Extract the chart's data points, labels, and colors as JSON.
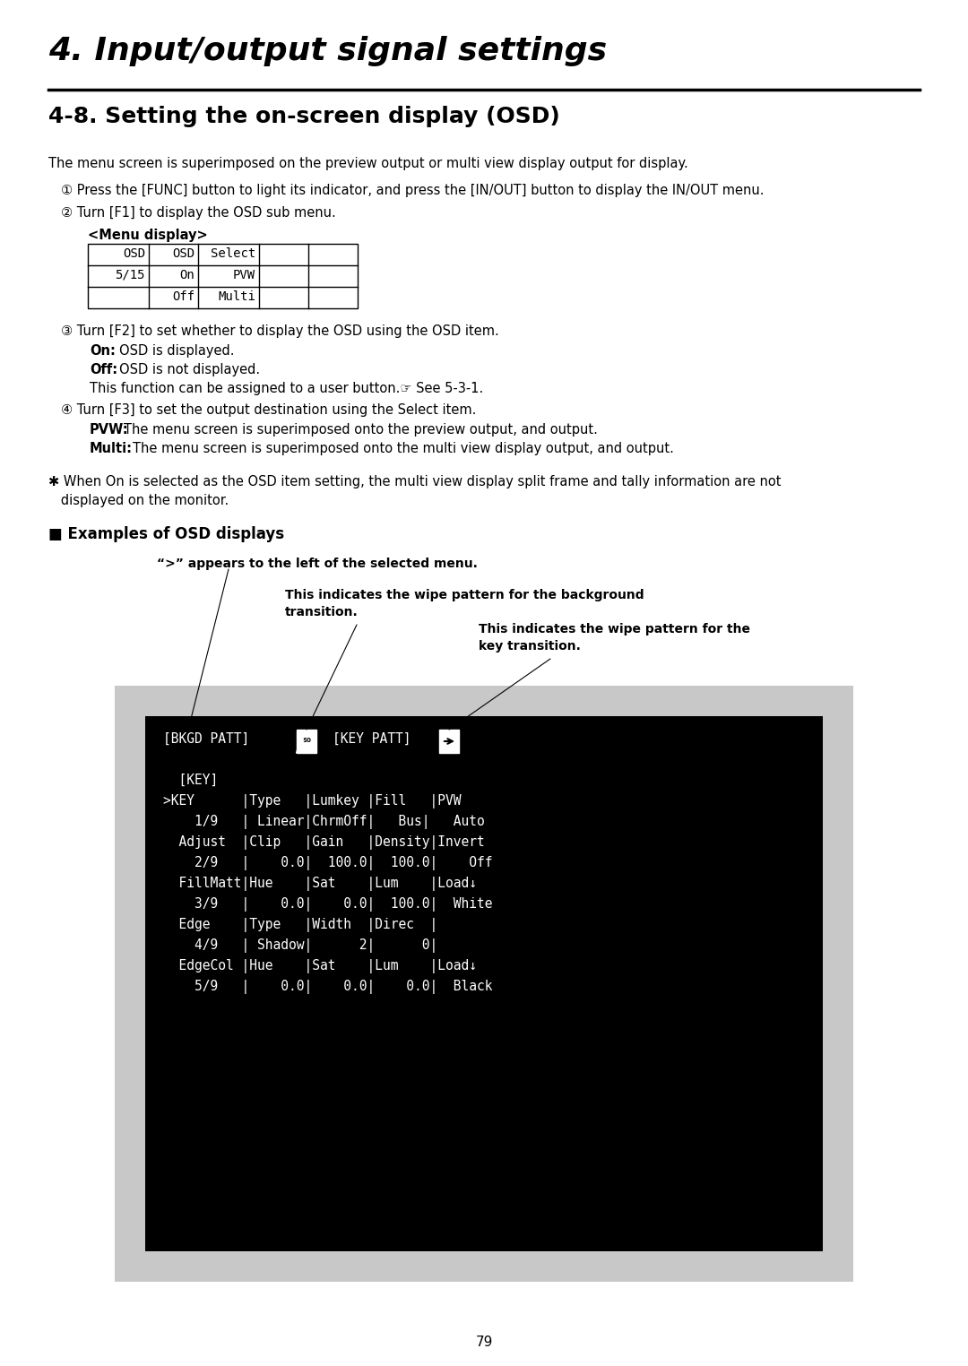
{
  "title": "4. Input/output signal settings",
  "section_title": "4-8. Setting the on-screen display (OSD)",
  "body_text": "The menu screen is superimposed on the preview output or multi view display output for display.",
  "step1": "① Press the [FUNC] button to light its indicator, and press the [IN/OUT] button to display the IN/OUT menu.",
  "step2": "② Turn [F1] to display the OSD sub menu.",
  "menu_display_label": "<Menu display>",
  "menu_table_header": [
    "OSD",
    "OSD",
    "Select",
    "",
    ""
  ],
  "menu_table_row1": [
    "5/15",
    "On",
    "PVW",
    "",
    ""
  ],
  "menu_table_row2": [
    "",
    "Off",
    "Multi",
    "",
    ""
  ],
  "step3": "③ Turn [F2] to set whether to display the OSD using the OSD item.",
  "on_label": "On:",
  "on_text": "OSD is displayed.",
  "off_label": "Off:",
  "off_text": "OSD is not displayed.",
  "assign_text": "This function can be assigned to a user button.☞ See 5-3-1.",
  "step4": "④ Turn [F3] to set the output destination using the Select item.",
  "pvw_label": "PVW:",
  "pvw_text": "The menu screen is superimposed onto the preview output, and output.",
  "multi_label": "Multi:",
  "multi_text": "The menu screen is superimposed onto the multi view display output, and output.",
  "note_line1": "✱ When On is selected as the OSD item setting, the multi view display split frame and tally information are not",
  "note_line2": "   displayed on the monitor.",
  "examples_title": "■ Examples of OSD displays",
  "ann1_text": "“>” appears to the left of the selected menu.",
  "ann2_line1": "This indicates the wipe pattern for the background",
  "ann2_line2": "transition.",
  "ann3_line1": "This indicates the wipe pattern for the",
  "ann3_line2": "key transition.",
  "osd_lines": [
    "  [BKGD PATT]         [KEY PATT]",
    "",
    "  [KEY]",
    ">KEY      |Type   |Lumkey |Fill   |PVW",
    "    1/9   | Linear|ChrmOff|   Bus|   Auto",
    "  Adjust  |Clip   |Gain   |Density|Invert",
    "    2/9   |    0.0|  100.0|  100.0|    Off",
    "  FillMatt|Hue    |Sat    |Lum    |Load↓",
    "    3/9   |    0.0|    0.0|  100.0|  White",
    "  Edge    |Type   |Width  |Direc  |",
    "    4/9   | Shadow|      2|      0|",
    "  EdgeCol |Hue    |Sat    |Lum    |Load↓",
    "    5/9   |    0.0|    0.0|    0.0|  Black"
  ],
  "page_number": "79",
  "bg_color": "#000000",
  "panel_bg": "#c8c8c8"
}
